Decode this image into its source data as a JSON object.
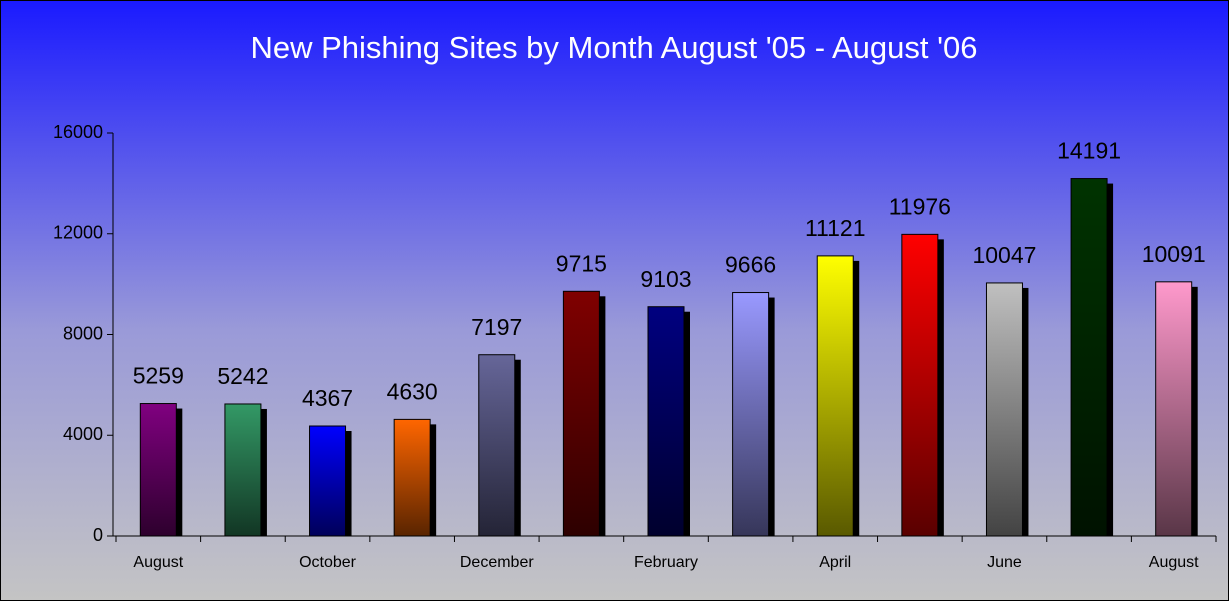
{
  "chart_data": {
    "type": "bar",
    "title": "New Phishing Sites by Month August '05 - August '06",
    "categories": [
      "August",
      null,
      "October",
      null,
      "December",
      null,
      "February",
      null,
      "April",
      null,
      "June",
      null,
      "August"
    ],
    "values": [
      5259,
      5242,
      4367,
      4630,
      7197,
      9715,
      9103,
      9666,
      11121,
      11976,
      10047,
      14191,
      10091
    ],
    "colors": [
      "#800080",
      "#339966",
      "#0000ff",
      "#ff6600",
      "#666699",
      "#800000",
      "#000080",
      "#9999ff",
      "#ffff00",
      "#ff0000",
      "#c0c0c0",
      "#003300",
      "#ff99cc"
    ],
    "ylim": [
      0,
      16000
    ],
    "yticks": [
      0,
      4000,
      8000,
      12000,
      16000
    ]
  }
}
